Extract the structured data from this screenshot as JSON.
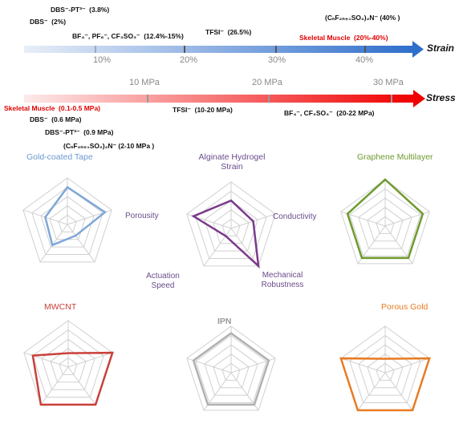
{
  "strain": {
    "axis_label": "Strain",
    "ticks": [
      "10%",
      "20%",
      "30%",
      "40%"
    ],
    "entries": [
      {
        "label": "DBS⁻-PT³⁻  (3.8%)"
      },
      {
        "label": "DBS⁻  (2%)"
      },
      {
        "label": "BF₄⁻, PF₆⁻, CF₃SO₃⁻  (12.4%-15%)"
      },
      {
        "label": "TFSI⁻  (26.5%)"
      },
      {
        "label": "(CₙF₂ₙ₊₁SO₂)₂N⁻ (40% )"
      },
      {
        "label": "Skeletal Muscle  (20%-40%)"
      }
    ]
  },
  "stress": {
    "axis_label": "Stress",
    "ticks": [
      "10 MPa",
      "20 MPa",
      "30 MPa"
    ],
    "entries": [
      {
        "label": "Skeletal Muscle  (0.1-0.5 MPa)"
      },
      {
        "label": "DBS⁻  (0.6 MPa)"
      },
      {
        "label": "DBS⁻-PT³⁻  (0.9 MPa)"
      },
      {
        "label": "(CₙF₂ₙ₊₁SO₂)₂N⁻ (2-10 MPa )"
      },
      {
        "label": "TFSI⁻  (10-20 MPa)"
      },
      {
        "label": "BF₄⁻, CF₃SO₃⁻  (20-22 MPa)"
      }
    ]
  },
  "radar": {
    "axes": [
      "Strain",
      "Conductivity",
      "Mechanical Robustness",
      "Actuation Speed",
      "Porousity"
    ],
    "axis_labels": {
      "top": "Alginate Hydrogel\nStrain",
      "right": "Conductivity",
      "bottom_right": "Mechanical\nRobustness",
      "bottom_left": "Actuation\nSpeed",
      "left": "Porousity"
    },
    "charts": [
      {
        "title": "Gold-coated Tape",
        "color": "#7fa7d8",
        "values": [
          0.8,
          0.85,
          0.3,
          0.55,
          0.5
        ]
      },
      {
        "title": "",
        "color": "#7b3a8c",
        "values": [
          0.6,
          0.5,
          1.0,
          0.2,
          0.85
        ]
      },
      {
        "title": "Graphene Multilayer",
        "color": "#6e9a2e",
        "values": [
          1.0,
          0.85,
          0.85,
          0.85,
          0.85
        ]
      },
      {
        "title": "MWCNT",
        "color": "#c9403a",
        "values": [
          0.3,
          1.0,
          1.0,
          1.0,
          0.8
        ]
      },
      {
        "title": "IPN",
        "color": "#b0b0b0",
        "values": [
          0.85,
          0.85,
          0.85,
          0.85,
          0.85
        ]
      },
      {
        "title": "Porous Gold",
        "color": "#e87b22",
        "values": [
          0.3,
          1.0,
          1.0,
          1.0,
          1.0
        ]
      }
    ]
  },
  "colors": {
    "strain_bar_start": "#eaf0f8",
    "strain_bar_end": "#2f6fcc",
    "stress_bar_start": "#fde8e8",
    "stress_bar_end": "#f00000",
    "grid": "#d0d0d0",
    "label_red": "#e00000",
    "title_purple": "#6a4c8c"
  }
}
